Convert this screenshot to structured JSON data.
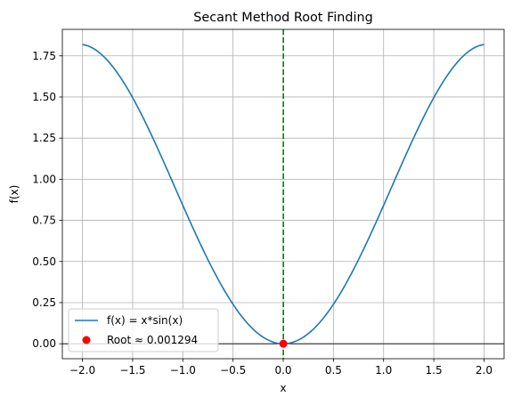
{
  "chart_data": {
    "type": "line",
    "title": "Secant Method Root Finding",
    "xlabel": "x",
    "ylabel": "f(x)",
    "xlim": [
      -2.2,
      2.2
    ],
    "ylim": [
      -0.091,
      1.911
    ],
    "xticks": [
      -2.0,
      -1.5,
      -1.0,
      -0.5,
      0.0,
      0.5,
      1.0,
      1.5,
      2.0
    ],
    "xtick_labels": [
      "−2.0",
      "−1.5",
      "−1.0",
      "−0.5",
      "0.0",
      "0.5",
      "1.0",
      "1.5",
      "2.0"
    ],
    "yticks": [
      0.0,
      0.25,
      0.5,
      0.75,
      1.0,
      1.25,
      1.5,
      1.75
    ],
    "ytick_labels": [
      "0.00",
      "0.25",
      "0.50",
      "0.75",
      "1.00",
      "1.25",
      "1.50",
      "1.75"
    ],
    "grid": true,
    "legend_position": "lower-left",
    "series": [
      {
        "name": "f(x) = x*sin(x)",
        "type": "line",
        "color": "#1f77b4",
        "function": "x*sin(x)",
        "x_range": [
          -2,
          2
        ]
      },
      {
        "name": "Root ≈ 0.001294",
        "type": "scatter",
        "color": "#ff0000",
        "points": [
          {
            "x": 0.001294,
            "y": 0.0
          }
        ]
      }
    ],
    "annotations": [
      {
        "type": "hline",
        "y": 0,
        "color": "#000000"
      },
      {
        "type": "vline",
        "x": 0.001294,
        "color": "#008000",
        "style": "dashed"
      }
    ]
  }
}
